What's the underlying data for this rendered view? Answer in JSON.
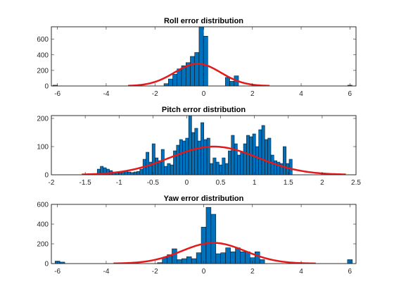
{
  "chart_data": [
    {
      "type": "bar",
      "title": "Roll error distribution",
      "xlim": [
        -6.25,
        6.25
      ],
      "ylim": [
        0,
        760
      ],
      "xticks": [
        -6,
        -4,
        -2,
        0,
        2,
        4,
        6
      ],
      "yticks": [
        0,
        200,
        400,
        600
      ],
      "bin_width": 0.18,
      "bins_x": [
        -6.1,
        -1.54,
        -1.36,
        -1.18,
        -1.0,
        -0.82,
        -0.64,
        -0.46,
        -0.28,
        -0.1,
        0.08,
        0.98,
        1.16,
        1.34,
        6.0
      ],
      "bins_y": [
        10,
        30,
        90,
        150,
        220,
        260,
        300,
        380,
        430,
        770,
        640,
        110,
        60,
        130,
        10
      ],
      "fit": {
        "type": "normal",
        "mu": -0.25,
        "sigma": 0.95,
        "peak": 285,
        "x_range": [
          -3.1,
          2.7
        ]
      },
      "colors": {
        "bars": "#0072BD",
        "fit": "#E31A1C"
      }
    },
    {
      "type": "bar",
      "title": "Pitch error distribution",
      "xlim": [
        -2,
        2.5
      ],
      "ylim": [
        0,
        210
      ],
      "xticks": [
        -2,
        -1.5,
        -1,
        -0.5,
        0,
        0.5,
        1,
        1.5,
        2,
        2.5
      ],
      "yticks": [
        0,
        100,
        200
      ],
      "bin_width": 0.045,
      "bins_x": [
        -1.3,
        -1.255,
        -1.21,
        -1.165,
        -1.12,
        -1.075,
        -1.03,
        -0.985,
        -0.94,
        -0.895,
        -0.85,
        -0.805,
        -0.76,
        -0.715,
        -0.67,
        -0.625,
        -0.58,
        -0.535,
        -0.49,
        -0.445,
        -0.4,
        -0.355,
        -0.31,
        -0.265,
        -0.22,
        -0.175,
        -0.13,
        -0.085,
        -0.04,
        0.005,
        0.05,
        0.095,
        0.14,
        0.185,
        0.23,
        0.275,
        0.32,
        0.365,
        0.41,
        0.455,
        0.5,
        0.545,
        0.59,
        0.635,
        0.68,
        0.725,
        0.77,
        0.815,
        0.86,
        0.905,
        0.95,
        0.995,
        1.04,
        1.085,
        1.13,
        1.175,
        1.22,
        1.265,
        1.31,
        1.355,
        1.4,
        1.445,
        1.49,
        1.535
      ],
      "bins_y": [
        20,
        30,
        25,
        20,
        15,
        10,
        8,
        10,
        12,
        15,
        10,
        8,
        10,
        12,
        20,
        55,
        80,
        45,
        110,
        60,
        50,
        90,
        30,
        40,
        35,
        85,
        105,
        125,
        120,
        130,
        215,
        150,
        165,
        120,
        185,
        125,
        130,
        40,
        60,
        45,
        35,
        60,
        40,
        85,
        140,
        110,
        70,
        80,
        110,
        140,
        135,
        145,
        100,
        160,
        175,
        125,
        130,
        70,
        50,
        45,
        40,
        100,
        40,
        55
      ],
      "fit": {
        "type": "normal",
        "mu": 0.4,
        "sigma": 0.65,
        "peak": 100,
        "x_range": [
          -1.55,
          2.35
        ]
      },
      "colors": {
        "bars": "#0072BD",
        "fit": "#E31A1C"
      }
    },
    {
      "type": "bar",
      "title": "Yaw error distribution",
      "xlim": [
        -6.25,
        6.25
      ],
      "ylim": [
        0,
        600
      ],
      "xticks": [
        -6,
        -4,
        -2,
        0,
        2,
        4,
        6
      ],
      "yticks": [
        0,
        200,
        400,
        600
      ],
      "bin_width": 0.2,
      "bins_x": [
        -6.0,
        -5.8,
        -1.8,
        -1.6,
        -1.4,
        -1.2,
        -1.0,
        -0.8,
        -0.6,
        -0.4,
        -0.2,
        0.0,
        0.2,
        0.4,
        0.6,
        0.8,
        1.0,
        1.2,
        1.4,
        1.6,
        1.8,
        2.0,
        2.2,
        2.4,
        6.0
      ],
      "bins_y": [
        25,
        15,
        10,
        60,
        90,
        150,
        40,
        50,
        70,
        50,
        110,
        370,
        570,
        500,
        100,
        110,
        160,
        120,
        160,
        120,
        120,
        60,
        120,
        40,
        40
      ],
      "fit": {
        "type": "normal",
        "mu": 0.4,
        "sigma": 1.3,
        "peak": 210,
        "x_range": [
          -3.7,
          4.6
        ]
      },
      "colors": {
        "bars": "#0072BD",
        "fit": "#E31A1C"
      }
    }
  ]
}
